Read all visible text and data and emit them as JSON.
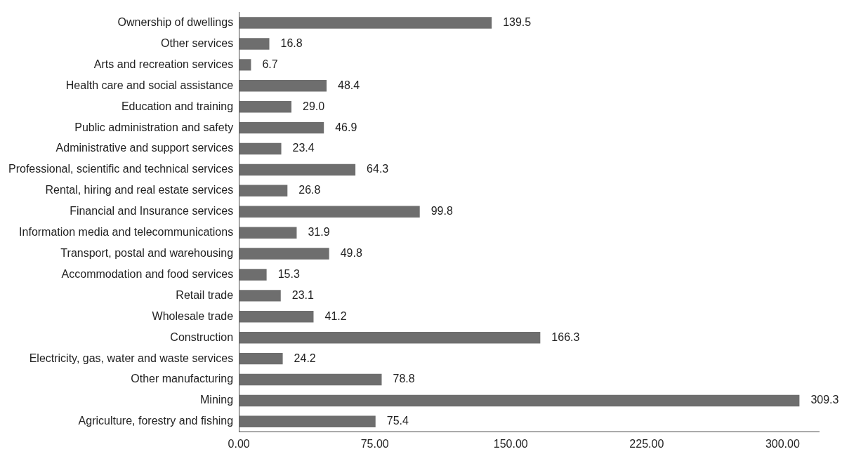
{
  "chart_data": {
    "type": "bar",
    "orientation": "horizontal",
    "categories": [
      "Ownership of dwellings",
      "Other services",
      "Arts and recreation services",
      "Health care and social assistance",
      "Education and training",
      "Public administration and safety",
      "Administrative and support services",
      "Professional, scientific and technical services",
      "Rental, hiring and real estate services",
      "Financial and Insurance services",
      "Information media and telecommunications",
      "Transport, postal and warehousing",
      "Accommodation and food services",
      "Retail trade",
      "Wholesale trade",
      "Construction",
      "Electricity, gas, water and waste services",
      "Other manufacturing",
      "Mining",
      "Agriculture, forestry and fishing"
    ],
    "values": [
      139.5,
      16.8,
      6.7,
      48.4,
      29.0,
      46.9,
      23.4,
      64.3,
      26.8,
      99.8,
      31.9,
      49.8,
      15.3,
      23.1,
      41.2,
      166.3,
      24.2,
      78.8,
      309.3,
      75.4
    ],
    "value_labels": [
      "139.5",
      "16.8",
      "6.7",
      "48.4",
      "29.0",
      "46.9",
      "23.4",
      "64.3",
      "26.8",
      "99.8",
      "31.9",
      "49.8",
      "15.3",
      "23.1",
      "41.2",
      "166.3",
      "24.2",
      "78.8",
      "309.3",
      "75.4"
    ],
    "color": "#6e6e6e",
    "xlim": [
      0,
      320
    ],
    "xticks": [
      {
        "value": 0,
        "label": "0.00"
      },
      {
        "value": 75,
        "label": "75.00"
      },
      {
        "value": 150,
        "label": "150.00"
      },
      {
        "value": 225,
        "label": "225.00"
      },
      {
        "value": 300,
        "label": "300.00"
      }
    ],
    "grid": false,
    "legend": false
  }
}
